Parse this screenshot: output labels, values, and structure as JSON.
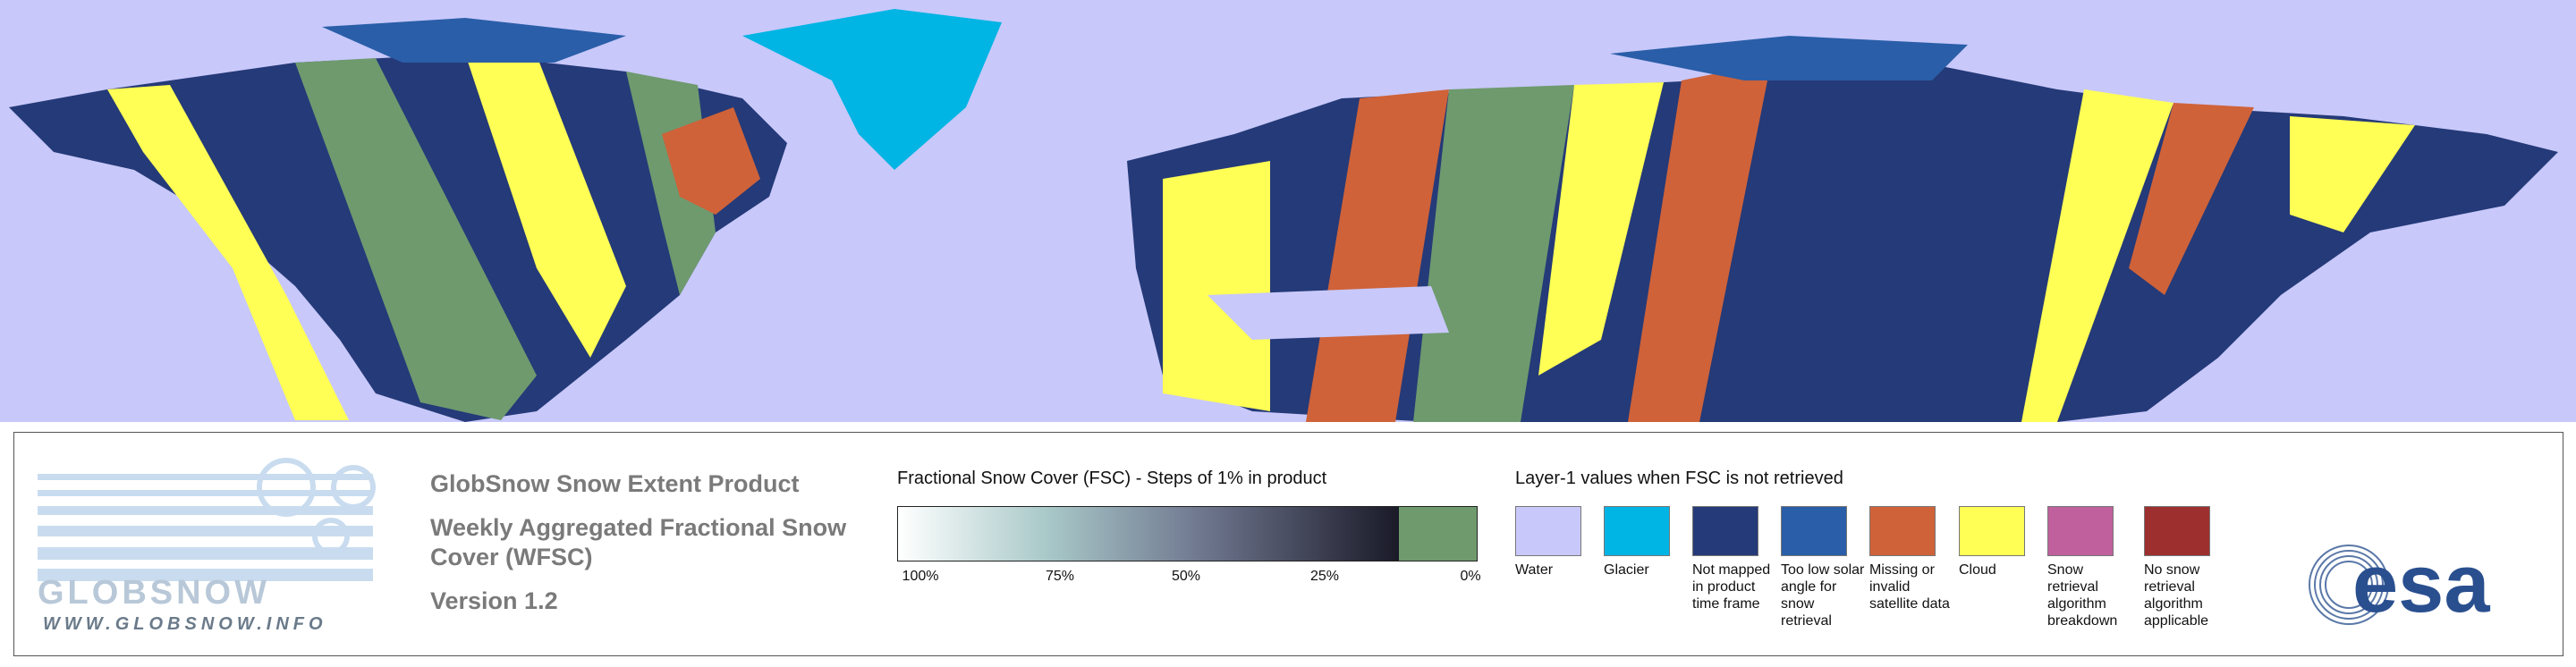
{
  "header": {
    "title": "GlobSnow Snow Extent Product",
    "subtitle": "Weekly Aggregated Fractional Snow Cover (WFSC)",
    "version": "Version 1.2"
  },
  "logo": {
    "name": "GLOBSNOW",
    "url": "WWW.GLOBSNOW.INFO",
    "agency": "esa"
  },
  "colorbar": {
    "title": "Fractional Snow Cover (FSC) - Steps of 1% in product",
    "ticks": [
      "100%",
      "75%",
      "50%",
      "25%",
      "0%"
    ]
  },
  "legend": {
    "title": "Layer-1 values when FSC is not retrieved",
    "items": [
      {
        "label": "Water",
        "color": "#c8c8fa"
      },
      {
        "label": "Glacier",
        "color": "#00b4e4"
      },
      {
        "label": "Not mapped in product time frame",
        "color": "#253a78"
      },
      {
        "label": "Too low solar angle for snow retrieval",
        "color": "#2a5ea8"
      },
      {
        "label": "Missing or invalid satellite data",
        "color": "#cf6239"
      },
      {
        "label": "Cloud",
        "color": "#ffff55"
      },
      {
        "label": "Snow retrieval algorithm breakdown",
        "color": "#c0609c"
      },
      {
        "label": "No snow retrieval algorithm applicable",
        "color": "#9e2f2f"
      }
    ]
  }
}
